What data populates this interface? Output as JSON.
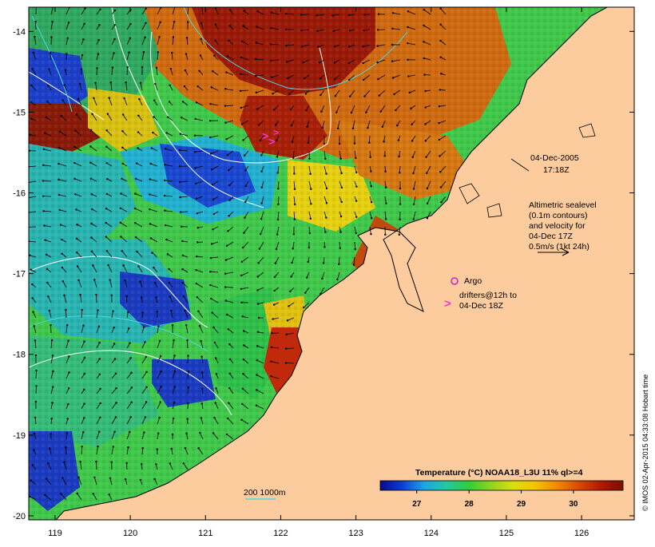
{
  "map": {
    "lon_ticks": [
      "119",
      "120",
      "121",
      "122",
      "123",
      "124",
      "125",
      "126"
    ],
    "lat_ticks": [
      "-14",
      "-15",
      "-16",
      "-17",
      "-18",
      "-19",
      "-20"
    ],
    "lon_range": [
      118.65,
      126.7
    ],
    "lat_range": [
      -20.05,
      -13.7
    ],
    "land_color": "#fdcc9e",
    "coast_color": "#000000"
  },
  "annotations": {
    "date": "04-Dec-2005",
    "time": "17:18Z",
    "legend_lines": [
      "Altimetric sealevel",
      "(0.1m contours)",
      "and velocity for",
      "04-Dec 17Z",
      "0.5m/s (1kt 24h)"
    ],
    "argo_label": "Argo",
    "drifters_line1": "drifters@12h to",
    "drifters_line2": "04-Dec 18Z",
    "depth_label": "200  1000m",
    "copyright": "© IMOS 02-Apr-2015 04:33:08 Hobart time"
  },
  "colorbar": {
    "title": "Temperature (°C) NOAA18_L3U 11% ql>=4",
    "ticks": [
      "27",
      "28",
      "29",
      "30"
    ],
    "colors": [
      "#0a0a8a",
      "#0b3fd6",
      "#1ca6e6",
      "#22c8a0",
      "#2fcf3a",
      "#8ed31a",
      "#d8e00e",
      "#f5c400",
      "#f08a00",
      "#d84a00",
      "#b01800",
      "#7a1000"
    ]
  }
}
